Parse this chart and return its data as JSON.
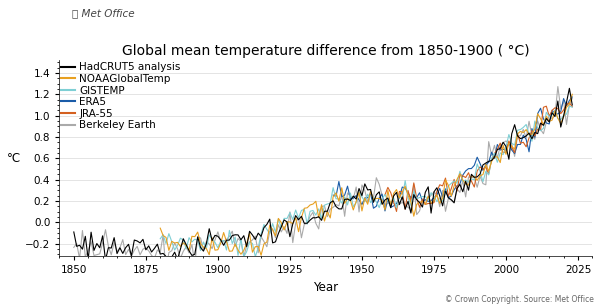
{
  "title": "Global mean temperature difference from 1850-1900 ( °C)",
  "xlabel": "Year",
  "ylabel": "°C",
  "ylim": [
    -0.32,
    1.52
  ],
  "xlim": [
    1845,
    2030
  ],
  "xticks": [
    1850,
    1875,
    1900,
    1925,
    1950,
    1975,
    2000,
    2025
  ],
  "yticks": [
    -0.2,
    0.0,
    0.2,
    0.4,
    0.6,
    0.8,
    1.0,
    1.2,
    1.4
  ],
  "series": {
    "HadCRUT5 analysis": {
      "color": "#000000",
      "lw": 0.8,
      "zorder": 6
    },
    "NOAAGlobalTemp": {
      "color": "#E8A020",
      "lw": 0.8,
      "zorder": 5
    },
    "GISTEMP": {
      "color": "#7ECFD4",
      "lw": 0.8,
      "zorder": 4
    },
    "ERA5": {
      "color": "#1A5CA8",
      "lw": 0.8,
      "zorder": 4
    },
    "JRA-55": {
      "color": "#D46020",
      "lw": 0.8,
      "zorder": 4
    },
    "Berkeley Earth": {
      "color": "#AAAAAA",
      "lw": 0.8,
      "zorder": 3
    }
  },
  "copyright_text": "© Crown Copyright. Source: Met Office",
  "background_color": "#ffffff",
  "legend_fontsize": 7.5,
  "title_fontsize": 10,
  "axis_fontsize": 8.5
}
